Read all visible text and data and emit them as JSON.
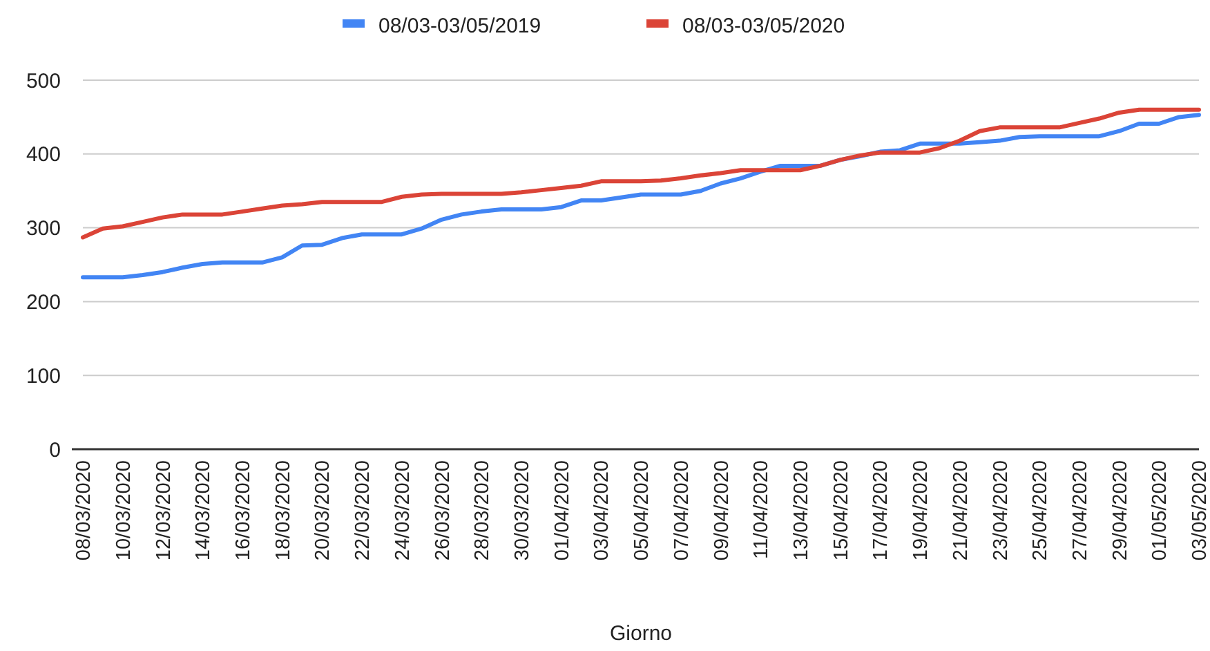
{
  "chart_data": {
    "type": "line",
    "xlabel": "Giorno",
    "categories": [
      "08/03/2020",
      null,
      "10/03/2020",
      null,
      "12/03/2020",
      null,
      "14/03/2020",
      null,
      "16/03/2020",
      null,
      "18/03/2020",
      null,
      "20/03/2020",
      null,
      "22/03/2020",
      null,
      "24/03/2020",
      null,
      "26/03/2020",
      null,
      "28/03/2020",
      null,
      "30/03/2020",
      null,
      "01/04/2020",
      null,
      "03/04/2020",
      null,
      "05/04/2020",
      null,
      "07/04/2020",
      null,
      "09/04/2020",
      null,
      "11/04/2020",
      null,
      "13/04/2020",
      null,
      "15/04/2020",
      null,
      "17/04/2020",
      null,
      "19/04/2020",
      null,
      "21/04/2020",
      null,
      "23/04/2020",
      null,
      "25/04/2020",
      null,
      "27/04/2020",
      null,
      "29/04/2020",
      null,
      "01/05/2020",
      null,
      "03/05/2020"
    ],
    "series": [
      {
        "name": "08/03-03/05/2019",
        "color": "#4285f4",
        "values": [
          233,
          233,
          233,
          236,
          240,
          246,
          251,
          253,
          253,
          253,
          260,
          276,
          277,
          286,
          291,
          291,
          291,
          299,
          311,
          318,
          322,
          325,
          325,
          325,
          328,
          337,
          337,
          341,
          345,
          345,
          345,
          350,
          360,
          367,
          376,
          384,
          384,
          384,
          392,
          397,
          403,
          405,
          414,
          414,
          414,
          416,
          418,
          423,
          424,
          424,
          424,
          424,
          431,
          441,
          441,
          450,
          453
        ]
      },
      {
        "name": "08/03-03/05/2020",
        "color": "#db4437",
        "values": [
          287,
          299,
          302,
          308,
          314,
          318,
          318,
          318,
          322,
          326,
          330,
          332,
          335,
          335,
          335,
          335,
          342,
          345,
          346,
          346,
          346,
          346,
          348,
          351,
          354,
          357,
          363,
          363,
          363,
          364,
          367,
          371,
          374,
          378,
          378,
          378,
          378,
          384,
          392,
          398,
          402,
          402,
          402,
          408,
          418,
          431,
          436,
          436,
          436,
          436,
          442,
          448,
          456,
          460,
          460,
          460,
          460
        ]
      }
    ],
    "ylim": [
      0,
      500
    ],
    "yticks": [
      0,
      100,
      200,
      300,
      400,
      500
    ],
    "grid": "y",
    "legend": "top"
  }
}
